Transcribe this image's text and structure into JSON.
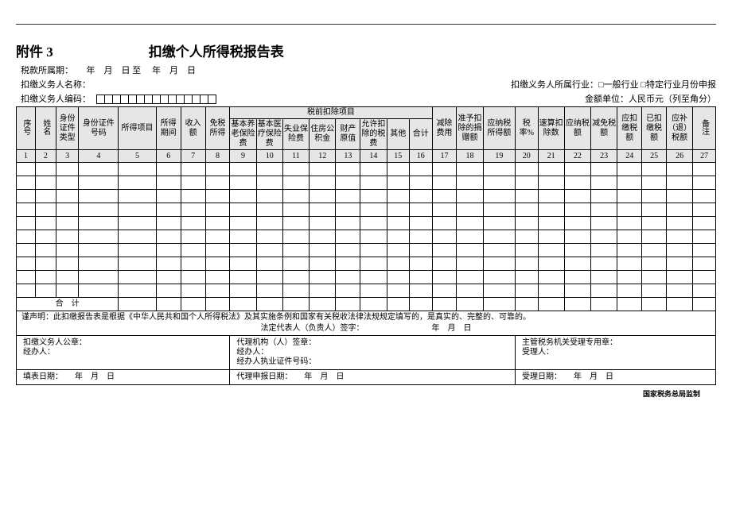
{
  "header": {
    "attachment": "附件 3",
    "title": "扣缴个人所得税报告表"
  },
  "meta": {
    "period_label": "税款所属期：",
    "period_value": "　　年　月　日 至 　年　月　日",
    "agent_name_label": "扣缴义务人名称：",
    "industry_label": "扣缴义务人所属行业：□一般行业 □特定行业月份申报",
    "agent_code_label": "扣缴义务人编码：",
    "amount_unit": "金额单位：人民币元（列至角分）"
  },
  "table": {
    "group1": "税前扣除项目",
    "h1": "序号",
    "h2": "姓名",
    "h3": "身份证件类型",
    "h4": "身份证件号码",
    "h5": "所得项目",
    "h6": "所得期间",
    "h7": "收入额",
    "h8": "免税所得",
    "h9": "基本养老保险费",
    "h10": "基本医疗保险费",
    "h11": "失业保险费",
    "h12": "住房公积金",
    "h13": "财产原值",
    "h14": "允许扣除的税费",
    "h15": "其他",
    "h16": "合计",
    "h17": "减除费用",
    "h18": "准予扣除的捐赠额",
    "h19": "应纳税所得额",
    "h20": "税率%",
    "h21": "速算扣除数",
    "h22": "应纳税额",
    "h23": "减免税额",
    "h24": "应扣缴税额",
    "h25": "已扣缴税额",
    "h26": "应补（退）税额",
    "h27": "备注",
    "nums": [
      "1",
      "2",
      "3",
      "4",
      "5",
      "6",
      "7",
      "8",
      "9",
      "10",
      "11",
      "12",
      "13",
      "14",
      "15",
      "16",
      "17",
      "18",
      "19",
      "20",
      "21",
      "22",
      "23",
      "24",
      "25",
      "26",
      "27"
    ],
    "total_label": "合　计"
  },
  "declare": {
    "line1": "谨声明：此扣缴报告表是根据《中华人民共和国个人所得税法》及其实施条例和国家有关税收法律法规规定填写的，是真实的、完整的、可靠的。",
    "line2": "法定代表人（负责人）签字：　　　　　　　　　年　月　日"
  },
  "sig": {
    "left1": "扣缴义务人公章：",
    "left2": "经办人：",
    "left3": "填表日期：　　年　月　日",
    "mid1": "代理机构（人）签章：",
    "mid2": "经办人：",
    "mid3": "经办人执业证件号码：",
    "mid4": "代理申报日期：　　年　月　日",
    "right1": "主管税务机关受理专用章：",
    "right2": "受理人：",
    "right3": "受理日期：　　年　月　日"
  },
  "footer": "国家税务总局监制"
}
